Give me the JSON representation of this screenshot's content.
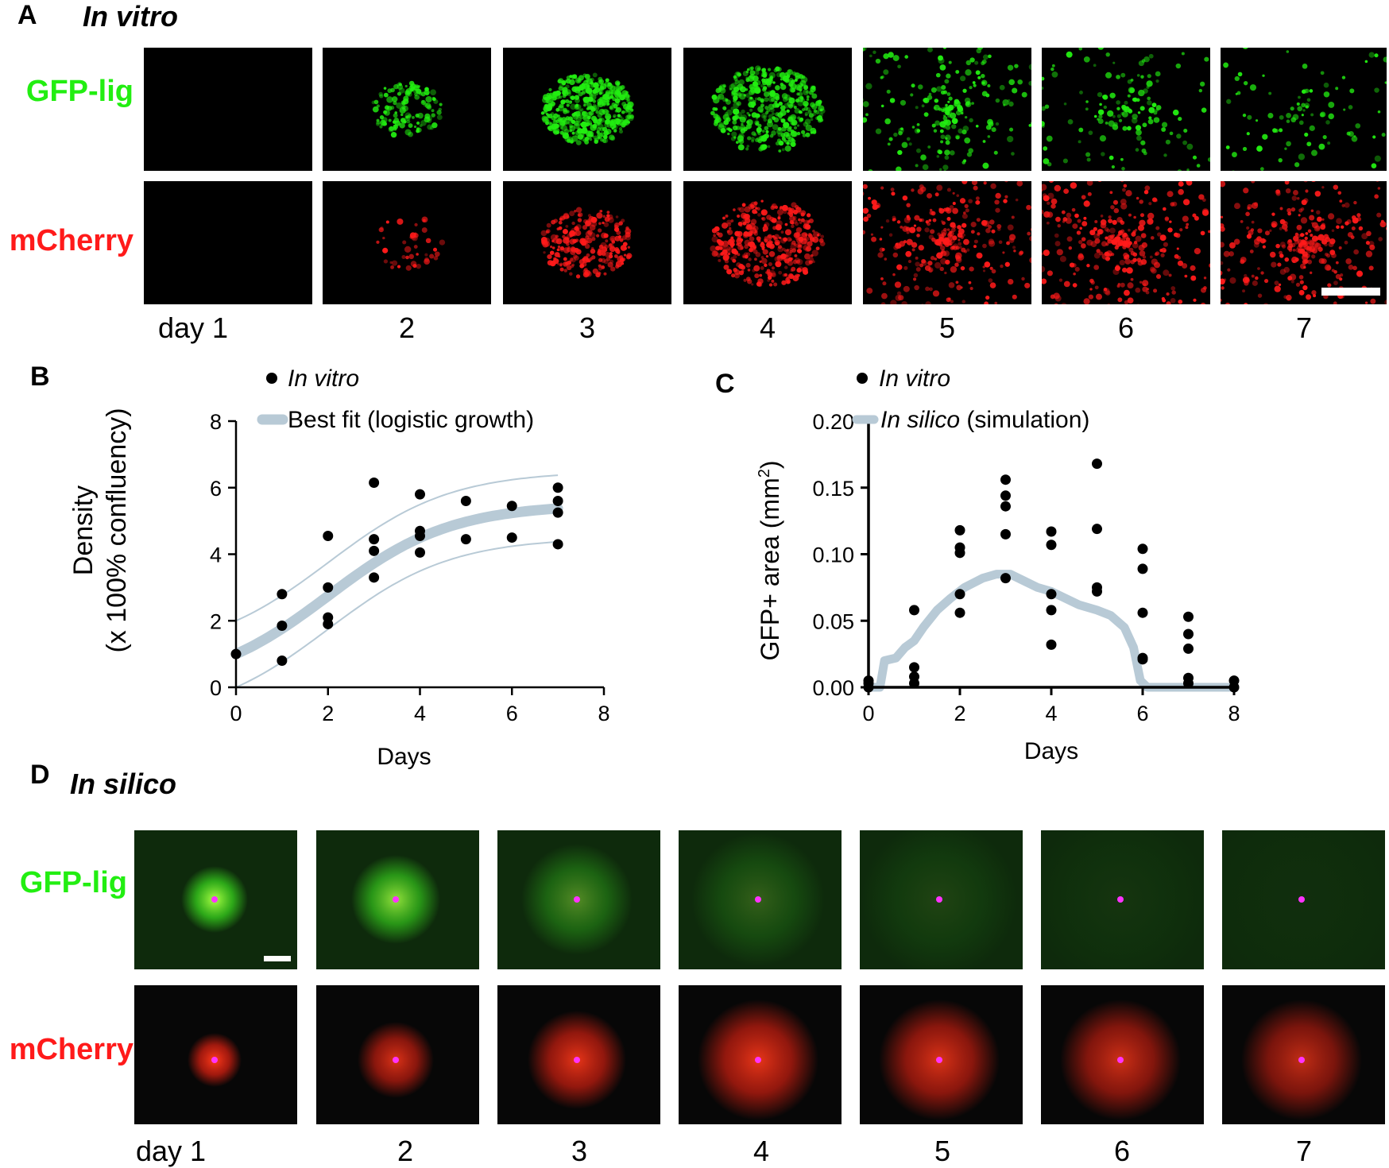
{
  "panel_a": {
    "letter": "A",
    "title": "In vitro",
    "row_labels": [
      "GFP-lig",
      "mCherry"
    ],
    "day_labels": [
      "day 1",
      "2",
      "3",
      "4",
      "5",
      "6",
      "7"
    ],
    "gfp_intensity": [
      0.0,
      0.3,
      1.0,
      0.95,
      0.7,
      0.45,
      0.35
    ],
    "mcherry_intensity": [
      0.0,
      0.1,
      0.55,
      0.85,
      1.0,
      1.0,
      1.0
    ]
  },
  "panel_b": {
    "letter": "B"
  },
  "panel_c": {
    "letter": "C"
  },
  "panel_d": {
    "letter": "D",
    "title": "In silico",
    "row_labels": [
      "GFP-lig",
      "mCherry"
    ],
    "day_labels": [
      "day 1",
      "2",
      "3",
      "4",
      "5",
      "6",
      "7"
    ],
    "gfp_intensity": [
      1.0,
      0.85,
      0.45,
      0.25,
      0.12,
      0.05,
      0.02
    ],
    "mcherry_intensity": [
      1.0,
      0.85,
      0.9,
      0.9,
      0.85,
      0.8,
      0.75
    ]
  },
  "colors": {
    "gfp": "#22ee11",
    "mcherry": "#ff1a1a",
    "fit": "#b8cad6",
    "points": "#000000",
    "marker": "#ff33ff"
  },
  "chart_data": [
    {
      "type": "scatter",
      "xlabel": "Days",
      "ylabel_line1": "Density",
      "ylabel_line2": "(x 100% confluency)",
      "xlim": [
        0,
        8
      ],
      "ylim": [
        0,
        8
      ],
      "xticks": [
        "0",
        "2",
        "4",
        "6",
        "8"
      ],
      "yticks": [
        "0",
        "2",
        "4",
        "6",
        "8"
      ],
      "legend": [
        "In vitro",
        "Best fit (logistic growth)"
      ],
      "points": [
        [
          0,
          1.0
        ],
        [
          1,
          2.8
        ],
        [
          1,
          1.85
        ],
        [
          1,
          0.8
        ],
        [
          2,
          4.55
        ],
        [
          2,
          3.0
        ],
        [
          2,
          2.1
        ],
        [
          2,
          1.9
        ],
        [
          3,
          6.15
        ],
        [
          3,
          4.45
        ],
        [
          3,
          4.1
        ],
        [
          3,
          3.3
        ],
        [
          4,
          5.8
        ],
        [
          4,
          4.7
        ],
        [
          4,
          4.55
        ],
        [
          4,
          4.05
        ],
        [
          5,
          5.6
        ],
        [
          5,
          4.45
        ],
        [
          6,
          5.45
        ],
        [
          6,
          4.5
        ],
        [
          7,
          6.0
        ],
        [
          7,
          5.6
        ],
        [
          7,
          5.25
        ],
        [
          7,
          4.3
        ]
      ],
      "fit": {
        "type": "logistic",
        "K": 5.5,
        "N0": 1.0,
        "r": 0.75
      },
      "band_offset": 1.0
    },
    {
      "type": "scatter",
      "xlabel": "Days",
      "ylabel": "GFP+ area (mm",
      "ylabel_sup": "2",
      "ylabel_end": ")",
      "xlim": [
        0,
        8
      ],
      "ylim": [
        0,
        0.2
      ],
      "xticks": [
        "0",
        "2",
        "4",
        "6",
        "8"
      ],
      "yticks": [
        "0.00",
        "0.05",
        "0.10",
        "0.15",
        "0.20"
      ],
      "legend_italic": [
        "In vitro",
        "In silico"
      ],
      "legend_rest": [
        "",
        " (simulation)"
      ],
      "points": [
        [
          0,
          0.005
        ],
        [
          0,
          0.003
        ],
        [
          0,
          0.0
        ],
        [
          1,
          0.058
        ],
        [
          1,
          0.015
        ],
        [
          1,
          0.008
        ],
        [
          1,
          0.003
        ],
        [
          2,
          0.118
        ],
        [
          2,
          0.105
        ],
        [
          2,
          0.101
        ],
        [
          2,
          0.07
        ],
        [
          2,
          0.056
        ],
        [
          3,
          0.156
        ],
        [
          3,
          0.144
        ],
        [
          3,
          0.136
        ],
        [
          3,
          0.115
        ],
        [
          3,
          0.082
        ],
        [
          4,
          0.117
        ],
        [
          4,
          0.107
        ],
        [
          4,
          0.07
        ],
        [
          4,
          0.058
        ],
        [
          4,
          0.032
        ],
        [
          5,
          0.168
        ],
        [
          5,
          0.119
        ],
        [
          5,
          0.075
        ],
        [
          5,
          0.072
        ],
        [
          6,
          0.104
        ],
        [
          6,
          0.089
        ],
        [
          6,
          0.056
        ],
        [
          6,
          0.022
        ],
        [
          6,
          0.021
        ],
        [
          7,
          0.053
        ],
        [
          7,
          0.04
        ],
        [
          7,
          0.029
        ],
        [
          7,
          0.007
        ],
        [
          7,
          0.003
        ],
        [
          8,
          0.005
        ],
        [
          8,
          0.0
        ]
      ],
      "simulation": [
        [
          0,
          0.0
        ],
        [
          0.25,
          0.0
        ],
        [
          0.35,
          0.02
        ],
        [
          0.6,
          0.022
        ],
        [
          0.8,
          0.03
        ],
        [
          1.0,
          0.035
        ],
        [
          1.2,
          0.045
        ],
        [
          1.5,
          0.058
        ],
        [
          1.8,
          0.067
        ],
        [
          2.1,
          0.075
        ],
        [
          2.5,
          0.082
        ],
        [
          2.8,
          0.085
        ],
        [
          3.1,
          0.085
        ],
        [
          3.4,
          0.08
        ],
        [
          3.7,
          0.075
        ],
        [
          4.0,
          0.072
        ],
        [
          4.3,
          0.067
        ],
        [
          4.6,
          0.062
        ],
        [
          5.0,
          0.058
        ],
        [
          5.3,
          0.054
        ],
        [
          5.6,
          0.045
        ],
        [
          5.8,
          0.03
        ],
        [
          5.95,
          0.005
        ],
        [
          6.1,
          0.0
        ],
        [
          8,
          0.0
        ]
      ]
    }
  ]
}
